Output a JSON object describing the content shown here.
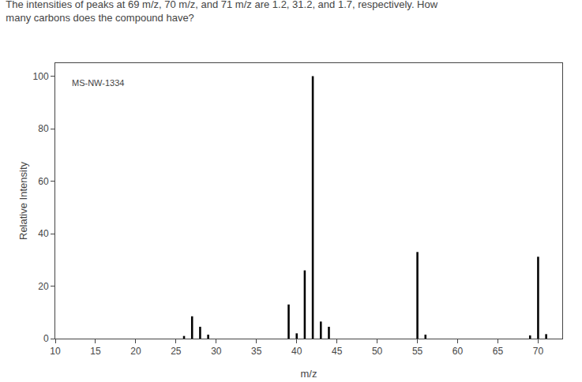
{
  "chart_data": {
    "type": "bar",
    "title": "The intensities of peaks at 69 m/z, 70 m/z, and 71 m/z are 1.2, 31.2, and 1.7, respectively. How\nmany carbons does the compound have?",
    "annotation": "MS-NW-1334",
    "xlabel": "m/z",
    "ylabel": "Relative Intensity",
    "x": [
      26,
      27,
      28,
      29,
      39,
      40,
      41,
      42,
      43,
      44,
      55,
      56,
      69,
      70,
      71
    ],
    "values": [
      1.0,
      8.5,
      4.5,
      1.5,
      13.0,
      2.0,
      26.0,
      100.0,
      6.5,
      4.5,
      33.0,
      1.5,
      1.2,
      31.2,
      1.7
    ],
    "color": "#000000",
    "xlim": [
      10,
      73
    ],
    "ylim": [
      0,
      105
    ],
    "xticks": [
      10,
      15,
      20,
      25,
      30,
      35,
      40,
      45,
      50,
      55,
      60,
      65,
      70
    ],
    "yticks": [
      0,
      20,
      40,
      60,
      80,
      100
    ],
    "grid": false
  }
}
